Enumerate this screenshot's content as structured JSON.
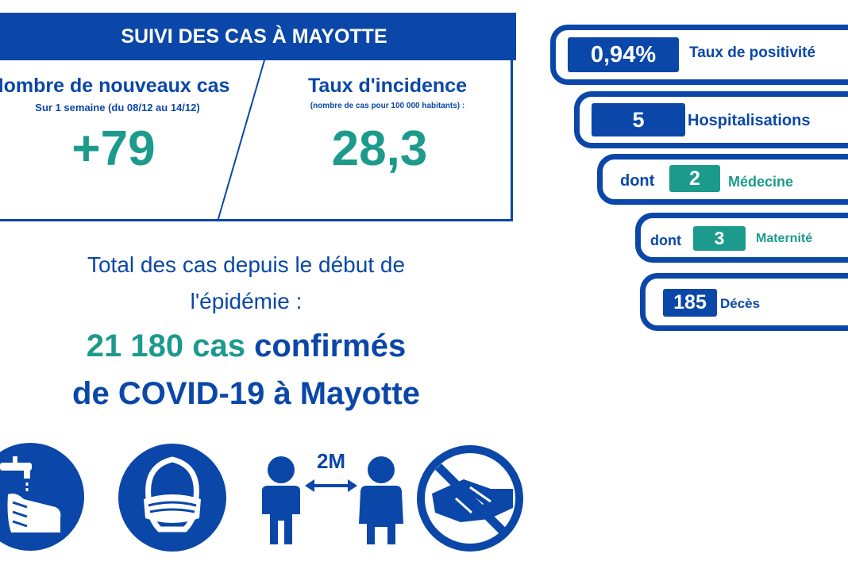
{
  "suivi": {
    "header": "SUIVI DES CAS À MAYOTTE",
    "nouveaux": {
      "title": "Nombre de nouveaux cas",
      "subtitle": "Sur 1 semaine (du 08/12 au 14/12)",
      "value": "+79"
    },
    "incidence": {
      "title": "Taux d'incidence",
      "subtitle": "(nombre de cas pour 100 000 habitants) :",
      "value": "28,3"
    }
  },
  "total": {
    "line1": "Total des cas depuis le début de",
    "line2": "l'épidémie :",
    "count": "21 180 cas",
    "confirmed": " confirmés",
    "line4": "de COVID-19 à Mayotte"
  },
  "indicators": {
    "positivite": {
      "value": "0,94%",
      "label": "Taux de positivité"
    },
    "hospitalisations": {
      "value": "5",
      "label": "Hospitalisations"
    },
    "medecine": {
      "prefix": "dont",
      "value": "2",
      "label": "Médecine"
    },
    "maternite": {
      "prefix": "dont",
      "value": "3",
      "label": "Maternité"
    },
    "deces": {
      "value": "185",
      "label": "Décès"
    }
  },
  "gestures": {
    "distance_label": "2M",
    "icons": [
      "hand-washing-icon",
      "face-mask-icon",
      "social-distancing-icon",
      "no-handshake-icon"
    ]
  },
  "colors": {
    "blue": "#0a47a8",
    "teal": "#1c9a8c"
  }
}
